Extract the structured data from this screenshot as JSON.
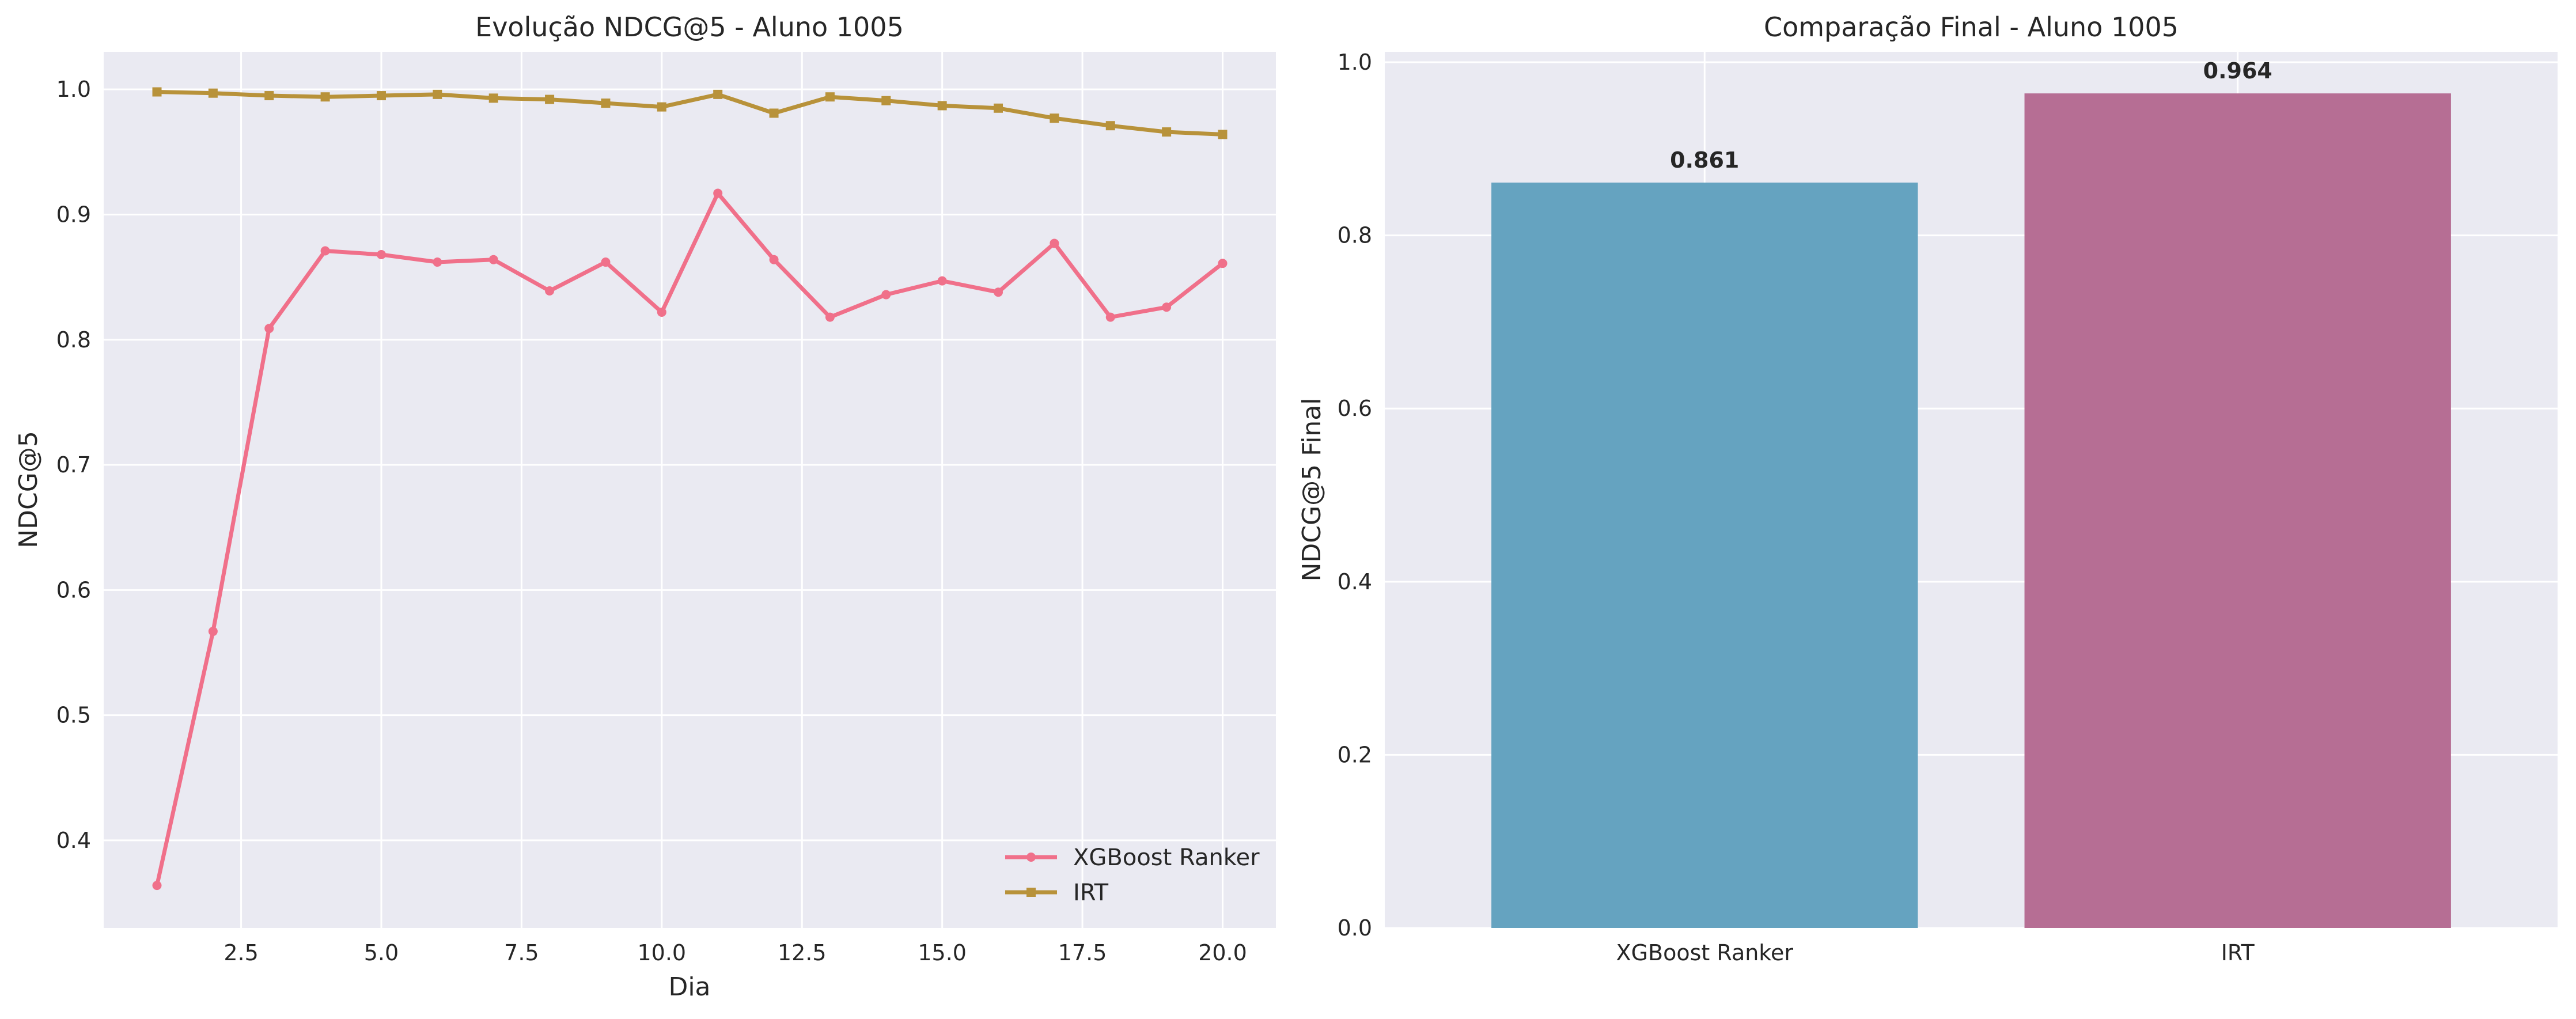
{
  "chart_data": [
    {
      "type": "line",
      "title": "Evolução NDCG@5 - Aluno 1005",
      "xlabel": "Dia",
      "ylabel": "NDCG@5",
      "xlim": [
        0.05,
        20.95
      ],
      "ylim": [
        0.33,
        1.03
      ],
      "x_ticks": [
        2.5,
        5.0,
        7.5,
        10.0,
        12.5,
        15.0,
        17.5,
        20.0
      ],
      "x_tick_labels": [
        "2.5",
        "5.0",
        "7.5",
        "10.0",
        "12.5",
        "15.0",
        "17.5",
        "20.0"
      ],
      "y_ticks": [
        0.4,
        0.5,
        0.6,
        0.7,
        0.8,
        0.9,
        1.0
      ],
      "y_tick_labels": [
        "0.4",
        "0.5",
        "0.6",
        "0.7",
        "0.8",
        "0.9",
        "1.0"
      ],
      "grid": true,
      "legend_position": "lower-right",
      "x": [
        1,
        2,
        3,
        4,
        5,
        6,
        7,
        8,
        9,
        10,
        11,
        12,
        13,
        14,
        15,
        16,
        17,
        18,
        19,
        20
      ],
      "series": [
        {
          "name": "XGBoost Ranker",
          "color": "#f0708a",
          "marker": "circle",
          "values": [
            0.364,
            0.567,
            0.809,
            0.871,
            0.868,
            0.862,
            0.864,
            0.839,
            0.862,
            0.822,
            0.917,
            0.864,
            0.818,
            0.836,
            0.847,
            0.838,
            0.877,
            0.818,
            0.826,
            0.861
          ]
        },
        {
          "name": "IRT",
          "color": "#b8923a",
          "marker": "square",
          "values": [
            0.998,
            0.997,
            0.995,
            0.994,
            0.995,
            0.996,
            0.993,
            0.992,
            0.989,
            0.986,
            0.996,
            0.981,
            0.994,
            0.991,
            0.987,
            0.985,
            0.977,
            0.971,
            0.966,
            0.964
          ]
        }
      ]
    },
    {
      "type": "bar",
      "title": "Comparação Final - Aluno 1005",
      "xlabel": "",
      "ylabel": "NDCG@5 Final",
      "ylim": [
        0.0,
        1.012
      ],
      "y_ticks": [
        0.0,
        0.2,
        0.4,
        0.6,
        0.8,
        1.0
      ],
      "y_tick_labels": [
        "0.0",
        "0.2",
        "0.4",
        "0.6",
        "0.8",
        "1.0"
      ],
      "grid": true,
      "categories": [
        "XGBoost Ranker",
        "IRT"
      ],
      "values": [
        0.861,
        0.964
      ],
      "value_labels": [
        "0.861",
        "0.964"
      ],
      "colors": [
        "#65a3c0",
        "#b66e94"
      ]
    }
  ]
}
